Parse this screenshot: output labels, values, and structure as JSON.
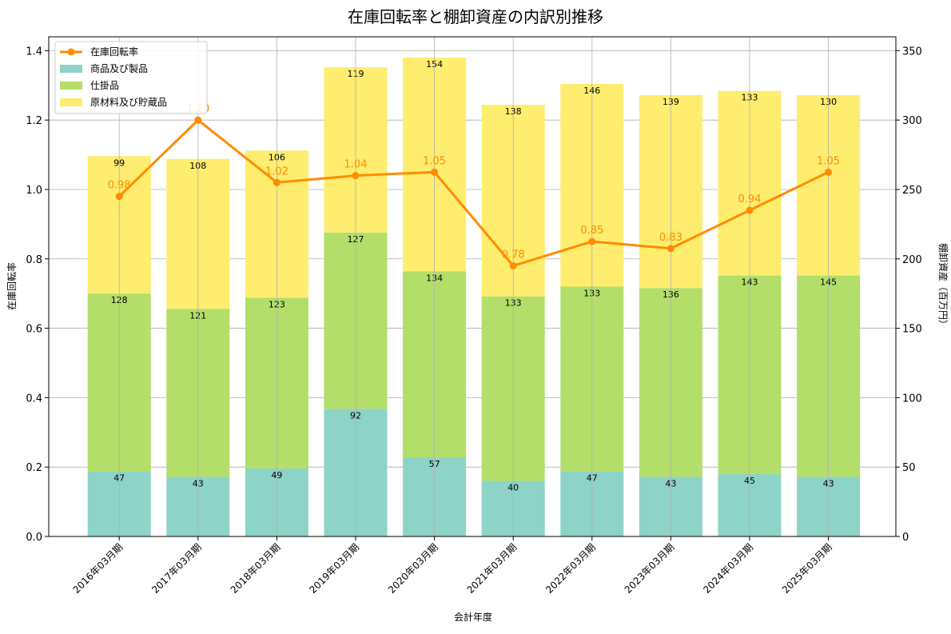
{
  "chart_data": {
    "type": "bar",
    "title": "在庫回転率と棚卸資産の内訳別推移",
    "xlabel": "会計年度",
    "ylabel_left": "在庫回転率",
    "ylabel_right": "棚卸資産（百万円）",
    "ylim_left": [
      0,
      1.44
    ],
    "ylim_right": [
      0,
      360
    ],
    "left_ticks": [
      "0.0",
      "0.2",
      "0.4",
      "0.6",
      "0.8",
      "1.0",
      "1.2",
      "1.4"
    ],
    "right_ticks": [
      "0",
      "50",
      "100",
      "150",
      "200",
      "250",
      "300",
      "350"
    ],
    "grid": true,
    "legend_position": "top-left",
    "categories": [
      "2016年03月期",
      "2017年03月期",
      "2018年03月期",
      "2019年03月期",
      "2020年03月期",
      "2021年03月期",
      "2022年03月期",
      "2023年03月期",
      "2024年03月期",
      "2025年03月期"
    ],
    "series": [
      {
        "name": "商品及び製品",
        "type": "bar",
        "axis": "right",
        "color": "#8dd3c7",
        "values": [
          47,
          43,
          49,
          92,
          57,
          40,
          47,
          43,
          45,
          43
        ]
      },
      {
        "name": "仕掛品",
        "type": "bar",
        "axis": "right",
        "color": "#b3de69",
        "values": [
          128,
          121,
          123,
          127,
          134,
          133,
          133,
          136,
          143,
          145
        ]
      },
      {
        "name": "原材料及び貯蔵品",
        "type": "bar",
        "axis": "right",
        "color": "#ffed6f",
        "values": [
          99,
          108,
          106,
          119,
          154,
          138,
          146,
          139,
          133,
          130
        ]
      },
      {
        "name": "在庫回転率",
        "type": "line",
        "axis": "left",
        "color": "#ff8c00",
        "values": [
          0.98,
          1.2,
          1.02,
          1.04,
          1.05,
          0.78,
          0.85,
          0.83,
          0.94,
          1.05
        ],
        "labels": [
          "0.98",
          "1.20",
          "1.02",
          "1.04",
          "1.05",
          "0.78",
          "0.85",
          "0.83",
          "0.94",
          "1.05"
        ]
      }
    ]
  }
}
